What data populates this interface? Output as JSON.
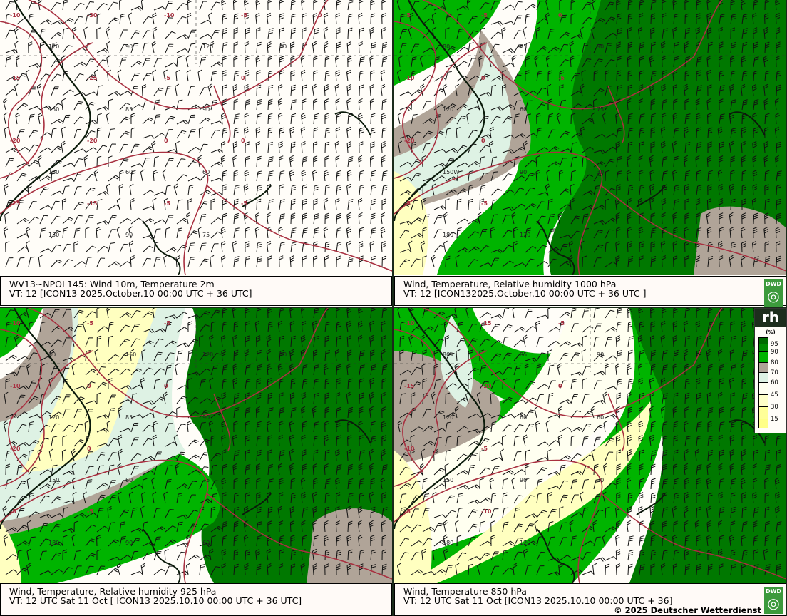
{
  "panels": [
    {
      "id": "wind-temp-2m",
      "title": "WV13~NPOL145:  Wind 10m, Temperature   2m",
      "valid_time": "VT: 12 [ICON13 2025.October.10 00:00 UTC + 36 UTC]",
      "humidity_fill": false,
      "contour_labels": [
        "-10",
        "-15",
        "-20",
        "-25",
        "-30",
        "-25",
        "-20",
        "-15",
        "-10",
        "-5",
        "0",
        "-5",
        "-5",
        "0",
        "0",
        "-5",
        "0"
      ],
      "grid_labels": [
        "120",
        "150",
        "180",
        "150",
        "90",
        "85",
        "60",
        "90",
        "120",
        "90",
        "60",
        "75",
        "30"
      ],
      "logo": false
    },
    {
      "id": "wind-temp-rh-1000",
      "title": "Wind,  Temperature, Relative humidity 1000 hPa",
      "valid_time": "VT: 12 [ICON132025.October.10 00:00 UTC +  36 UTC ]",
      "humidity_fill": true,
      "contour_labels": [
        "-5",
        "-10",
        "-20",
        "-5",
        "-5",
        "0",
        "0",
        "-5",
        "0",
        "-5"
      ],
      "grid_labels": [
        "80",
        "120",
        "150W",
        "180",
        "85",
        "60",
        "90",
        "120",
        "90",
        "75",
        "30"
      ],
      "logo": true
    },
    {
      "id": "wind-temp-rh-925",
      "title": "Wind, Temperature, Relative humidity 925 hPa",
      "valid_time": "VT: 12 UTC Sat  11 Oct [ ICON13 2025.10.10 00:00 UTC + 36 UTC]",
      "humidity_fill": true,
      "contour_labels": [
        "-10",
        "-10",
        "-20",
        "-5",
        "-5",
        "0",
        "0",
        "-5",
        "-5",
        "0"
      ],
      "grid_labels": [
        "80",
        "120",
        "150",
        "180",
        "150",
        "85",
        "60",
        "90",
        "120",
        "90",
        "75",
        "60",
        "30"
      ],
      "logo": false
    },
    {
      "id": "wind-temp-850",
      "title": "Wind,  Temperature 850 hPa",
      "valid_time": "VT: 12 UTC Sat  11 Oct [ICON13 2025.10.10 00:00 UTC + 36]",
      "humidity_fill": true,
      "contour_labels": [
        "-10",
        "-15",
        "-10",
        "-5",
        "-15",
        "-20",
        "-5",
        "-10",
        "-5",
        "0"
      ],
      "grid_labels": [
        "80",
        "120",
        "150",
        "180",
        "85",
        "60",
        "90",
        "120",
        "90",
        "60",
        "30"
      ],
      "logo": true
    }
  ],
  "logo_text": "DWD",
  "copyright": "© 2025 Deutscher Wetterdienst",
  "legend": {
    "title": "rh",
    "unit": "(%)",
    "levels": [
      "95",
      "90",
      "80",
      "70",
      "60",
      "45",
      "30",
      "15"
    ],
    "colors": [
      "#006a00",
      "#008a00",
      "#00b400",
      "#b0a498",
      "#def2e4",
      "#fffff0",
      "#ffffc8",
      "#ffff98",
      "#ffff88"
    ]
  },
  "colors": {
    "contour": "#a83040",
    "coast": "#0a1a0a",
    "barb": "#111111",
    "dark_green": "#007800",
    "green": "#00b400",
    "gray": "#b0a498",
    "pale": "#def2e4",
    "cream": "#fffff0",
    "yellow": "#ffffc0"
  }
}
